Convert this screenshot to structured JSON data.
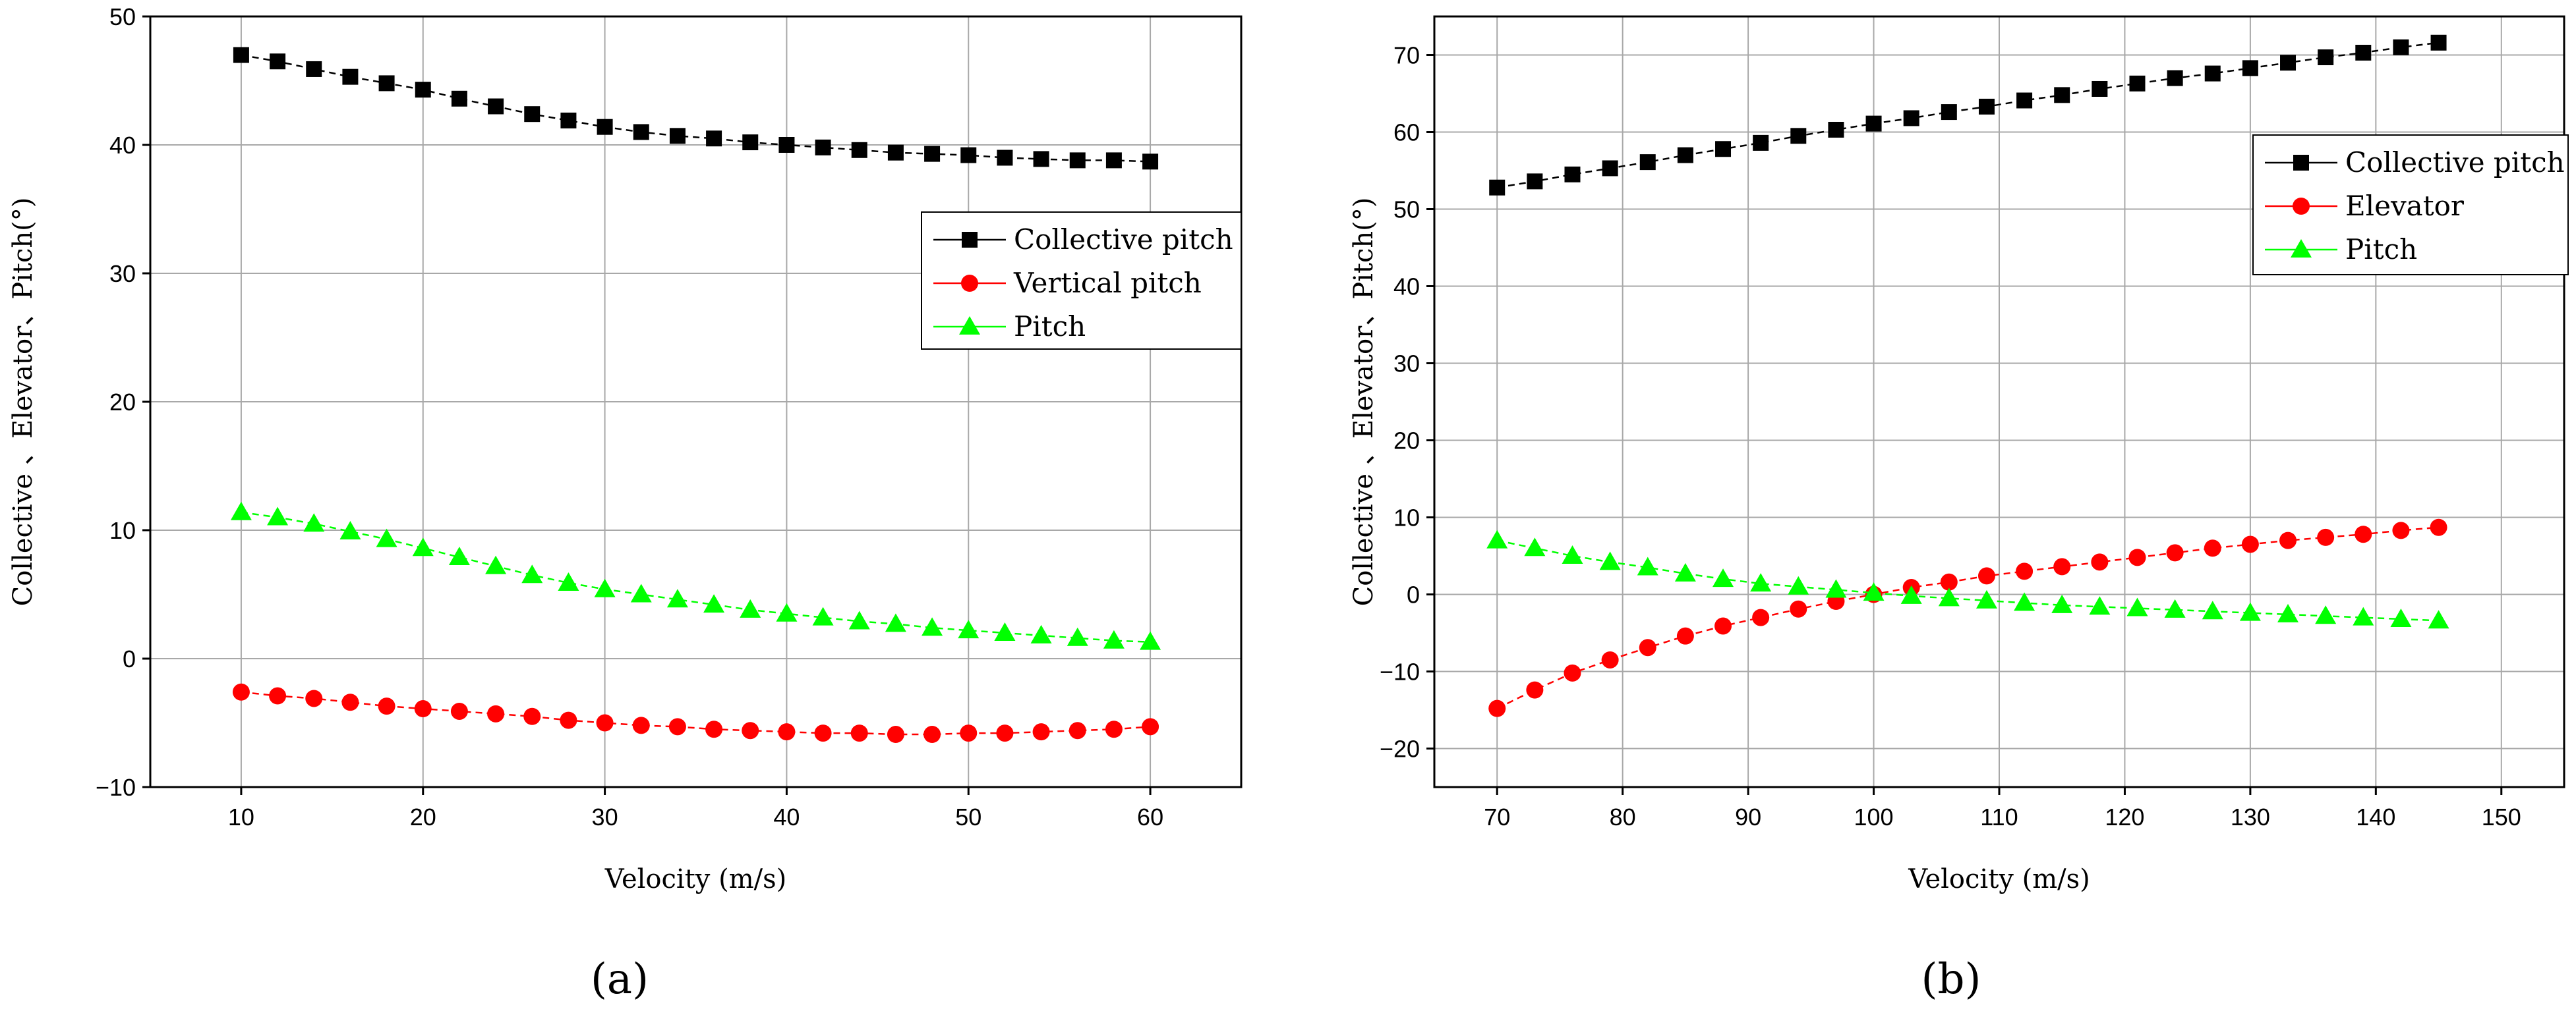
{
  "chart_data": [
    {
      "type": "line",
      "panel_label": "(a)",
      "title": "",
      "xlabel": "Velocity (m/s)",
      "ylabel": "Collective 、Elevator、Pitch(°)",
      "xlim": [
        5,
        65
      ],
      "ylim": [
        -10,
        50
      ],
      "xticks": [
        10,
        20,
        30,
        40,
        50,
        60
      ],
      "yticks": [
        -10,
        0,
        10,
        20,
        30,
        40,
        50
      ],
      "xtick_labels": [
        "10",
        "20",
        "30",
        "40",
        "50",
        "60"
      ],
      "ytick_labels": [
        "−10",
        "0",
        "10",
        "20",
        "30",
        "40",
        "50"
      ],
      "grid": true,
      "legend_position": "right",
      "x": [
        10,
        12,
        14,
        16,
        18,
        20,
        22,
        24,
        26,
        28,
        30,
        32,
        34,
        36,
        38,
        40,
        42,
        44,
        46,
        48,
        50,
        52,
        54,
        56,
        58,
        60
      ],
      "series": [
        {
          "name": "Collective pitch",
          "marker": "square",
          "color": "#000000",
          "values": [
            47.0,
            46.5,
            45.9,
            45.3,
            44.8,
            44.3,
            43.6,
            43.0,
            42.4,
            41.9,
            41.4,
            41.0,
            40.7,
            40.5,
            40.2,
            40.0,
            39.8,
            39.6,
            39.4,
            39.3,
            39.2,
            39.0,
            38.9,
            38.8,
            38.8,
            38.7
          ]
        },
        {
          "name": "Vertical pitch",
          "marker": "circle",
          "color": "#ff0000",
          "values": [
            -2.6,
            -2.9,
            -3.1,
            -3.4,
            -3.7,
            -3.9,
            -4.1,
            -4.3,
            -4.5,
            -4.8,
            -5.0,
            -5.2,
            -5.3,
            -5.5,
            -5.6,
            -5.7,
            -5.8,
            -5.8,
            -5.9,
            -5.9,
            -5.8,
            -5.8,
            -5.7,
            -5.6,
            -5.5,
            -5.3
          ]
        },
        {
          "name": "Pitch",
          "marker": "triangle",
          "color": "#00ff00",
          "values": [
            11.4,
            11.0,
            10.5,
            9.9,
            9.3,
            8.6,
            7.9,
            7.2,
            6.5,
            5.9,
            5.4,
            5.0,
            4.6,
            4.2,
            3.8,
            3.5,
            3.2,
            2.9,
            2.7,
            2.4,
            2.2,
            2.0,
            1.8,
            1.6,
            1.4,
            1.3
          ]
        }
      ]
    },
    {
      "type": "line",
      "panel_label": "(b)",
      "title": "",
      "xlabel": "Velocity (m/s)",
      "ylabel": "Collective 、Elevator、Pitch(°)",
      "xlim": [
        65,
        155
      ],
      "ylim": [
        -25,
        75
      ],
      "xticks": [
        70,
        80,
        90,
        100,
        110,
        120,
        130,
        140,
        150
      ],
      "yticks": [
        -20,
        -10,
        0,
        10,
        20,
        30,
        40,
        50,
        60,
        70
      ],
      "xtick_labels": [
        "70",
        "80",
        "90",
        "100",
        "110",
        "120",
        "130",
        "140",
        "150"
      ],
      "ytick_labels": [
        "−20",
        "−10",
        "0",
        "10",
        "20",
        "30",
        "40",
        "50",
        "60",
        "70"
      ],
      "grid": true,
      "legend_position": "top-right",
      "x": [
        70,
        73,
        76,
        79,
        82,
        85,
        88,
        91,
        94,
        97,
        100,
        103,
        106,
        109,
        112,
        115,
        118,
        121,
        124,
        127,
        130,
        133,
        136,
        139,
        142,
        145
      ],
      "series": [
        {
          "name": "Collective pitch",
          "marker": "square",
          "color": "#000000",
          "values": [
            52.8,
            53.6,
            54.5,
            55.3,
            56.1,
            57.0,
            57.8,
            58.6,
            59.5,
            60.3,
            61.1,
            61.8,
            62.6,
            63.3,
            64.1,
            64.8,
            65.6,
            66.3,
            67.0,
            67.6,
            68.3,
            69.0,
            69.7,
            70.3,
            71.0,
            71.6
          ]
        },
        {
          "name": "Elevator",
          "marker": "circle",
          "color": "#ff0000",
          "values": [
            -14.8,
            -12.4,
            -10.2,
            -8.5,
            -6.9,
            -5.4,
            -4.1,
            -3.0,
            -1.9,
            -0.9,
            0.0,
            0.9,
            1.6,
            2.4,
            3.0,
            3.6,
            4.2,
            4.8,
            5.4,
            6.0,
            6.5,
            7.0,
            7.4,
            7.8,
            8.3,
            8.7
          ]
        },
        {
          "name": "Pitch",
          "marker": "triangle",
          "color": "#00ff00",
          "values": [
            7.0,
            6.0,
            5.0,
            4.2,
            3.5,
            2.7,
            2.0,
            1.4,
            1.0,
            0.6,
            0.2,
            -0.2,
            -0.5,
            -0.8,
            -1.1,
            -1.4,
            -1.6,
            -1.8,
            -2.0,
            -2.2,
            -2.4,
            -2.6,
            -2.8,
            -3.0,
            -3.2,
            -3.4
          ]
        }
      ]
    }
  ]
}
